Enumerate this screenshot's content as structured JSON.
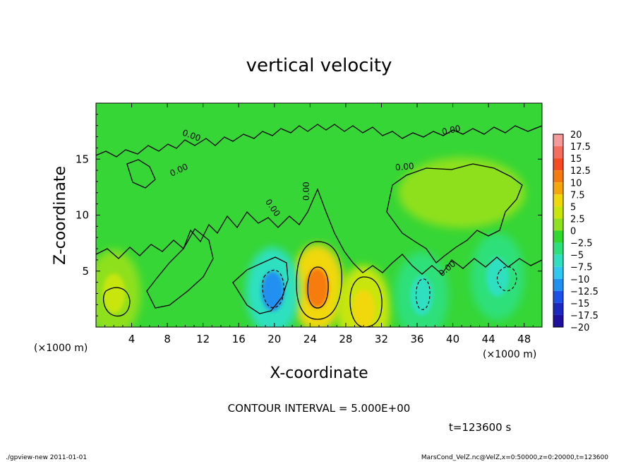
{
  "chart_data": {
    "type": "heatmap",
    "title": "vertical velocity",
    "xlabel": "X-coordinate",
    "ylabel": "Z-coordinate",
    "x_unit_left": "(×1000 m)",
    "x_unit_right": "(×1000 m)",
    "xlim": [
      0,
      50
    ],
    "ylim": [
      0,
      20
    ],
    "xticks": [
      "4",
      "8",
      "12",
      "16",
      "20",
      "24",
      "28",
      "32",
      "36",
      "40",
      "44",
      "48"
    ],
    "yticks": [
      "5",
      "10",
      "15"
    ],
    "contour_interval": "CONTOUR INTERVAL = 5.000E+00",
    "time_label": "t=123600 s",
    "contour_labels": [
      "0.00",
      "0.00",
      "0.00",
      "0.00",
      "0.00",
      "0.00",
      "0.00"
    ],
    "colorbar": {
      "levels": [
        "20",
        "17.5",
        "15",
        "12.5",
        "10",
        "7.5",
        "5",
        "2.5",
        "0",
        "−2.5",
        "−5",
        "−7.5",
        "−10",
        "−12.5",
        "−15",
        "−17.5",
        "−20"
      ],
      "colors": [
        "#f59a9a",
        "#f56d5c",
        "#f54a22",
        "#f57b10",
        "#f5a60a",
        "#f0d80a",
        "#c8e60a",
        "#8fe01e",
        "#30d830",
        "#2ee07a",
        "#2ee0c0",
        "#2ec8f0",
        "#2090f0",
        "#1c50e8",
        "#1c28c0",
        "#2010a0",
        "#7010b0"
      ]
    },
    "features": [
      {
        "x": 24.8,
        "z": 3.5,
        "value": 13
      },
      {
        "x": 30.0,
        "z": 1.6,
        "value": 8
      },
      {
        "x": 19.8,
        "z": 3.2,
        "value": -10
      },
      {
        "x": 36.5,
        "z": 2.8,
        "value": -6
      },
      {
        "x": 2.0,
        "z": 3.0,
        "value": 5
      },
      {
        "x": 45.0,
        "z": 4.5,
        "value": -5
      }
    ]
  },
  "footer": {
    "left": "./gpview-new   2011-01-01",
    "right": "MarsCond_VelZ.nc@VelZ,x=0:50000,z=0:20000,t=123600"
  }
}
